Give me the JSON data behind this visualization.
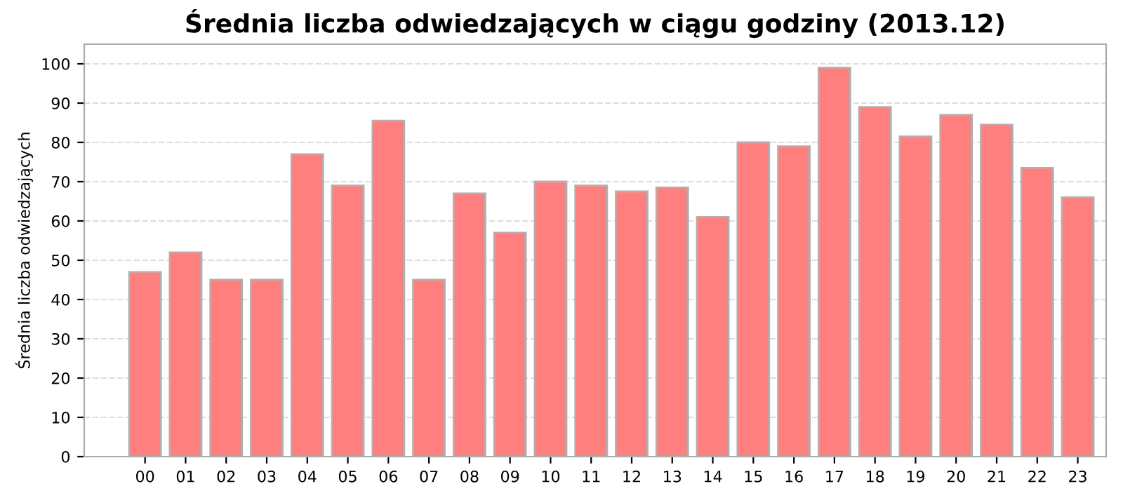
{
  "chart_data": {
    "type": "bar",
    "title": "Średnia liczba odwiedzających w ciągu godziny (2013.12)",
    "ylabel": "Średnia liczba odwiedzających",
    "categories": [
      "00",
      "01",
      "02",
      "03",
      "04",
      "05",
      "06",
      "07",
      "08",
      "09",
      "10",
      "11",
      "12",
      "13",
      "14",
      "15",
      "16",
      "17",
      "18",
      "19",
      "20",
      "21",
      "22",
      "23"
    ],
    "values": [
      47,
      52,
      45,
      45,
      77,
      69,
      85.5,
      45,
      67,
      57,
      70,
      69,
      67.5,
      68.5,
      61,
      80,
      79,
      99,
      89,
      81.5,
      87,
      84.5,
      73.5,
      66
    ],
    "color": "#ff7f7f",
    "ylim": [
      0,
      105
    ],
    "yticks": [
      0,
      10,
      20,
      30,
      40,
      50,
      60,
      70,
      80,
      90,
      100
    ],
    "grid": "y",
    "legend": false
  }
}
